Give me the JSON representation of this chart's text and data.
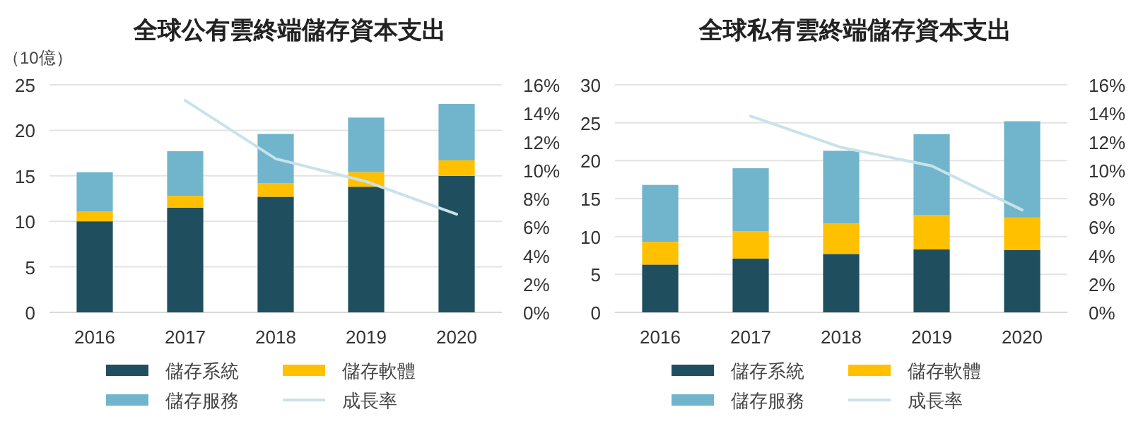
{
  "chart_data": [
    {
      "type": "bar",
      "title": "全球公有雲終端儲存資本支出",
      "ylabel": "（10億）",
      "stacked": true,
      "categories": [
        "2016",
        "2017",
        "2018",
        "2019",
        "2020"
      ],
      "series": [
        {
          "name": "儲存系統",
          "color": "#1f4e5f",
          "values": [
            10.0,
            11.5,
            12.7,
            13.8,
            15.0
          ]
        },
        {
          "name": "儲存軟體",
          "color": "#ffc000",
          "values": [
            1.1,
            1.3,
            1.5,
            1.6,
            1.7
          ]
        },
        {
          "name": "儲存服務",
          "color": "#70b5cc",
          "values": [
            4.3,
            4.9,
            5.4,
            6.0,
            6.2
          ]
        },
        {
          "name": "成長率",
          "type": "line",
          "axis": "y2",
          "color": "#c8e2ea",
          "values": [
            null,
            14.9,
            10.8,
            9.2,
            6.9
          ]
        }
      ],
      "ylim": [
        0,
        25
      ],
      "yticks": [
        0,
        5,
        10,
        15,
        20,
        25
      ],
      "y2lim": [
        0,
        16
      ],
      "y2ticks": [
        {
          "value": 0,
          "label": "0%"
        },
        {
          "value": 2,
          "label": "2%"
        },
        {
          "value": 4,
          "label": "4%"
        },
        {
          "value": 6,
          "label": "6%"
        },
        {
          "value": 8,
          "label": "8%"
        },
        {
          "value": 10,
          "label": "10%"
        },
        {
          "value": 12,
          "label": "12%"
        },
        {
          "value": 14,
          "label": "14%"
        },
        {
          "value": 16,
          "label": "16%"
        }
      ],
      "grid": "y",
      "legend": "bottom"
    },
    {
      "type": "bar",
      "title": "全球私有雲終端儲存資本支出",
      "stacked": true,
      "categories": [
        "2016",
        "2017",
        "2018",
        "2019",
        "2020"
      ],
      "series": [
        {
          "name": "儲存系統",
          "color": "#1f4e5f",
          "values": [
            6.3,
            7.1,
            7.7,
            8.3,
            8.2
          ]
        },
        {
          "name": "儲存軟體",
          "color": "#ffc000",
          "values": [
            3.0,
            3.6,
            4.0,
            4.5,
            4.3
          ]
        },
        {
          "name": "儲存服務",
          "color": "#70b5cc",
          "values": [
            7.5,
            8.3,
            9.6,
            10.7,
            12.7
          ]
        },
        {
          "name": "成長率",
          "type": "line",
          "axis": "y2",
          "color": "#c8e2ea",
          "values": [
            null,
            13.8,
            11.6,
            10.3,
            7.2
          ]
        }
      ],
      "ylim": [
        0,
        30
      ],
      "yticks": [
        0,
        5,
        10,
        15,
        20,
        25,
        30
      ],
      "y2lim": [
        0,
        16
      ],
      "y2ticks": [
        {
          "value": 0,
          "label": "0%"
        },
        {
          "value": 2,
          "label": "2%"
        },
        {
          "value": 4,
          "label": "4%"
        },
        {
          "value": 6,
          "label": "6%"
        },
        {
          "value": 8,
          "label": "8%"
        },
        {
          "value": 10,
          "label": "10%"
        },
        {
          "value": 12,
          "label": "12%"
        },
        {
          "value": 14,
          "label": "14%"
        },
        {
          "value": 16,
          "label": "16%"
        }
      ],
      "grid": "y",
      "legend": "bottom"
    }
  ]
}
